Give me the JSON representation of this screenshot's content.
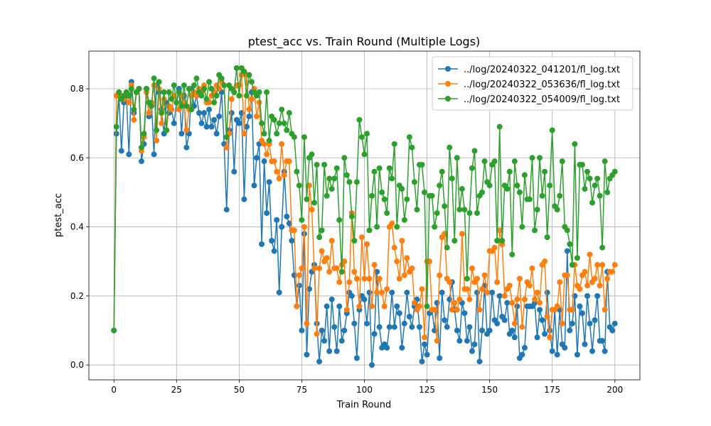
{
  "chart_data": {
    "type": "line",
    "title": "ptest_acc vs. Train Round (Multiple Logs)",
    "x_label": "Train Round",
    "y_label": "ptest_acc",
    "xlim": [
      -10,
      210
    ],
    "ylim": [
      -0.043,
      0.909
    ],
    "xticks": [
      0,
      25,
      50,
      75,
      100,
      125,
      150,
      175,
      200
    ],
    "yticks": [
      {
        "value": 0,
        "label": "0.0"
      },
      0.2,
      0.4,
      0.6,
      0.8
    ],
    "grid": true,
    "legend": "upper right",
    "x": [
      0,
      1,
      2,
      3,
      4,
      5,
      6,
      7,
      8,
      9,
      10,
      11,
      12,
      13,
      14,
      15,
      16,
      17,
      18,
      19,
      20,
      21,
      22,
      23,
      24,
      25,
      26,
      27,
      28,
      29,
      30,
      31,
      32,
      33,
      34,
      35,
      36,
      37,
      38,
      39,
      40,
      41,
      42,
      43,
      44,
      45,
      46,
      47,
      48,
      49,
      50,
      51,
      52,
      53,
      54,
      55,
      56,
      57,
      58,
      59,
      60,
      61,
      62,
      63,
      64,
      65,
      66,
      67,
      68,
      69,
      70,
      71,
      72,
      73,
      74,
      75,
      76,
      77,
      78,
      79,
      80,
      81,
      82,
      83,
      84,
      85,
      86,
      87,
      88,
      89,
      90,
      91,
      92,
      93,
      94,
      95,
      96,
      97,
      98,
      99,
      100,
      101,
      102,
      103,
      104,
      105,
      106,
      107,
      108,
      109,
      110,
      111,
      112,
      113,
      114,
      115,
      116,
      117,
      118,
      119,
      120,
      121,
      122,
      123,
      124,
      125,
      126,
      127,
      128,
      129,
      130,
      131,
      132,
      133,
      134,
      135,
      136,
      137,
      138,
      139,
      140,
      141,
      142,
      143,
      144,
      145,
      146,
      147,
      148,
      149,
      150,
      151,
      152,
      153,
      154,
      155,
      156,
      157,
      158,
      159,
      160,
      161,
      162,
      163,
      164,
      165,
      166,
      167,
      168,
      169,
      170,
      171,
      172,
      173,
      174,
      175,
      176,
      177,
      178,
      179,
      180,
      181,
      182,
      183,
      184,
      185,
      186,
      187,
      188,
      189,
      190,
      191,
      192,
      193,
      194,
      195,
      196,
      197,
      198,
      199,
      200
    ],
    "series": [
      {
        "name": "../log/20240322_041201/fl_log.txt",
        "color": "#1f77b4",
        "values": [
          0.1,
          0.67,
          0.78,
          0.62,
          0.76,
          0.78,
          0.61,
          0.82,
          0.73,
          0.79,
          0.8,
          0.59,
          0.64,
          0.8,
          0.72,
          0.76,
          0.61,
          0.81,
          0.79,
          0.74,
          0.67,
          0.76,
          0.73,
          0.74,
          0.7,
          0.76,
          0.8,
          0.67,
          0.78,
          0.63,
          0.67,
          0.8,
          0.75,
          0.78,
          0.73,
          0.7,
          0.73,
          0.69,
          0.74,
          0.69,
          0.71,
          0.67,
          0.72,
          0.79,
          0.64,
          0.45,
          0.68,
          0.73,
          0.56,
          0.71,
          0.7,
          0.73,
          0.48,
          0.69,
          0.72,
          0.79,
          0.52,
          0.6,
          0.64,
          0.35,
          0.59,
          0.44,
          0.53,
          0.36,
          0.33,
          0.42,
          0.21,
          0.4,
          0.56,
          0.43,
          0.41,
          0.36,
          0.26,
          0.17,
          0.23,
          0.1,
          0.38,
          0.03,
          0.22,
          0.27,
          0.29,
          0.12,
          0.01,
          0.1,
          0.07,
          0.17,
          0.04,
          0.19,
          0.11,
          0.04,
          0.17,
          0.07,
          0.1,
          0.15,
          0.21,
          0.2,
          0.12,
          0.02,
          0.16,
          0.2,
          0.19,
          0.12,
          0.21,
          0.0,
          0.09,
          0.27,
          0.11,
          0.05,
          0.06,
          0.05,
          0.11,
          0.21,
          0.11,
          0.17,
          0.15,
          0.05,
          0.12,
          0.21,
          0.14,
          0.11,
          0.17,
          0.19,
          0.11,
          0.01,
          0.06,
          0.03,
          0.15,
          0.16,
          0.1,
          0.18,
          0.02,
          0.21,
          0.13,
          0.11,
          0.19,
          0.24,
          0.16,
          0.1,
          0.07,
          0.18,
          0.15,
          0.07,
          0.11,
          0.04,
          0.06,
          0.21,
          0.01,
          0.1,
          0.23,
          0.09,
          0.1,
          0.21,
          0.13,
          0.12,
          0.2,
          0.14,
          0.13,
          0.18,
          0.09,
          0.1,
          0.08,
          0.17,
          0.02,
          0.03,
          0.05,
          0.17,
          0.17,
          0.17,
          0.18,
          0.08,
          0.16,
          0.13,
          0.09,
          0.21,
          0.1,
          0.04,
          0.16,
          0.03,
          0.16,
          0.06,
          0.05,
          0.33,
          0.1,
          0.12,
          0.2,
          0.03,
          0.17,
          0.15,
          0.06,
          0.2,
          0.12,
          0.04,
          0.13,
          0.2,
          0.07,
          0.07,
          0.04,
          0.27,
          0.11,
          0.1,
          0.12
        ]
      },
      {
        "name": "../log/20240322_053636/fl_log.txt",
        "color": "#ff7f0e",
        "values": [
          0.1,
          0.78,
          0.79,
          0.78,
          0.77,
          0.79,
          0.76,
          0.81,
          0.71,
          0.79,
          0.8,
          0.62,
          0.66,
          0.79,
          0.73,
          0.76,
          0.81,
          0.65,
          0.8,
          0.7,
          0.77,
          0.68,
          0.75,
          0.74,
          0.78,
          0.76,
          0.74,
          0.78,
          0.76,
          0.68,
          0.74,
          0.78,
          0.79,
          0.78,
          0.8,
          0.79,
          0.81,
          0.76,
          0.76,
          0.78,
          0.79,
          0.81,
          0.8,
          0.82,
          0.81,
          0.63,
          0.67,
          0.77,
          0.79,
          0.81,
          0.81,
          0.84,
          0.67,
          0.84,
          0.74,
          0.77,
          0.8,
          0.72,
          0.76,
          0.65,
          0.64,
          0.61,
          0.64,
          0.59,
          0.59,
          0.56,
          0.54,
          0.64,
          0.55,
          0.59,
          0.59,
          0.39,
          0.39,
          0.17,
          0.26,
          0.28,
          0.4,
          0.12,
          0.52,
          0.45,
          0.28,
          0.09,
          0.28,
          0.33,
          0.3,
          0.31,
          0.27,
          0.36,
          0.28,
          0.28,
          0.24,
          0.29,
          0.3,
          0.16,
          0.24,
          0.44,
          0.27,
          0.25,
          0.17,
          0.37,
          0.25,
          0.35,
          0.25,
          0.17,
          0.29,
          0.21,
          0.25,
          0.21,
          0.17,
          0.22,
          0.4,
          0.41,
          0.34,
          0.3,
          0.25,
          0.36,
          0.26,
          0.31,
          0.27,
          0.28,
          0.18,
          0.16,
          0.17,
          0.22,
          0.08,
          0.3,
          0.3,
          0.16,
          0.16,
          0.07,
          0.26,
          0.37,
          0.38,
          0.25,
          0.24,
          0.16,
          0.18,
          0.16,
          0.19,
          0.38,
          0.22,
          0.22,
          0.19,
          0.28,
          0.24,
          0.25,
          0.16,
          0.22,
          0.26,
          0.21,
          0.33,
          0.33,
          0.34,
          0.24,
          0.39,
          0.35,
          0.2,
          0.22,
          0.23,
          0.18,
          0.12,
          0.19,
          0.25,
          0.11,
          0.19,
          0.24,
          0.23,
          0.28,
          0.19,
          0.21,
          0.18,
          0.29,
          0.3,
          0.14,
          0.08,
          0.16,
          0.16,
          0.17,
          0.24,
          0.12,
          0.26,
          0.26,
          0.16,
          0.16,
          0.29,
          0.23,
          0.22,
          0.26,
          0.27,
          0.23,
          0.32,
          0.24,
          0.25,
          0.29,
          0.23,
          0.29,
          0.16,
          0.25,
          0.27,
          0.27,
          0.29
        ]
      },
      {
        "name": "../log/20240322_054009/fl_log.txt",
        "color": "#2ca02c",
        "values": [
          0.1,
          0.69,
          0.79,
          0.77,
          0.78,
          0.79,
          0.78,
          0.8,
          0.74,
          0.79,
          0.8,
          0.63,
          0.67,
          0.8,
          0.76,
          0.75,
          0.83,
          0.68,
          0.82,
          0.73,
          0.79,
          0.68,
          0.79,
          0.77,
          0.81,
          0.76,
          0.79,
          0.75,
          0.81,
          0.75,
          0.8,
          0.74,
          0.81,
          0.83,
          0.79,
          0.78,
          0.8,
          0.77,
          0.82,
          0.8,
          0.76,
          0.78,
          0.84,
          0.83,
          0.81,
          0.66,
          0.81,
          0.8,
          0.79,
          0.86,
          0.78,
          0.86,
          0.85,
          0.78,
          0.84,
          0.82,
          0.79,
          0.78,
          0.79,
          0.7,
          0.67,
          0.79,
          0.65,
          0.72,
          0.71,
          0.67,
          0.7,
          0.74,
          0.7,
          0.68,
          0.73,
          0.67,
          0.66,
          0.56,
          0.52,
          0.42,
          0.66,
          0.48,
          0.6,
          0.61,
          0.47,
          0.58,
          0.37,
          0.39,
          0.58,
          0.49,
          0.54,
          0.51,
          0.54,
          0.57,
          0.42,
          0.27,
          0.6,
          0.55,
          0.53,
          0.43,
          0.36,
          0.53,
          0.71,
          0.66,
          0.61,
          0.67,
          0.39,
          0.49,
          0.56,
          0.4,
          0.57,
          0.5,
          0.48,
          0.44,
          0.57,
          0.54,
          0.64,
          0.4,
          0.52,
          0.51,
          0.42,
          0.48,
          0.66,
          0.63,
          0.53,
          0.45,
          0.58,
          0.58,
          0.5,
          0.17,
          0.49,
          0.49,
          0.4,
          0.44,
          0.52,
          0.56,
          0.46,
          0.34,
          0.63,
          0.54,
          0.36,
          0.6,
          0.45,
          0.51,
          0.45,
          0.25,
          0.44,
          0.57,
          0.62,
          0.44,
          0.49,
          0.5,
          0.59,
          0.53,
          0.52,
          0.58,
          0.59,
          0.36,
          0.69,
          0.36,
          0.52,
          0.51,
          0.56,
          0.32,
          0.59,
          0.52,
          0.5,
          0.4,
          0.55,
          0.48,
          0.48,
          0.6,
          0.39,
          0.45,
          0.6,
          0.49,
          0.56,
          0.37,
          0.52,
          0.68,
          0.46,
          0.45,
          0.49,
          0.59,
          0.4,
          0.39,
          0.35,
          0.29,
          0.64,
          0.31,
          0.58,
          0.58,
          0.51,
          0.56,
          0.54,
          0.47,
          0.52,
          0.54,
          0.49,
          0.34,
          0.59,
          0.5,
          0.54,
          0.55,
          0.56
        ]
      }
    ]
  }
}
